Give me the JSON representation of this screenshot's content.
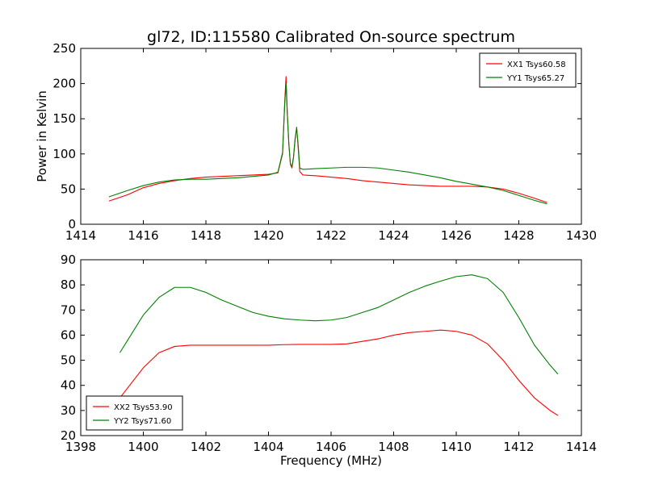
{
  "chart_data": [
    {
      "type": "line",
      "title": "gl72, ID:115580 Calibrated On-source spectrum",
      "xlabel": "",
      "ylabel": "Power in Kelvin",
      "xlim": [
        1414,
        1430
      ],
      "ylim": [
        0,
        250
      ],
      "xticks": [
        "1414",
        "1416",
        "1418",
        "1420",
        "1422",
        "1424",
        "1426",
        "1428",
        "1430"
      ],
      "yticks": [
        "0",
        "50",
        "100",
        "150",
        "200",
        "250"
      ],
      "legend_position": "top-right",
      "series": [
        {
          "name": "XX1 Tsys60.58",
          "color": "#ff0000",
          "x": [
            1414.9,
            1415.5,
            1416,
            1416.5,
            1417,
            1417.5,
            1418,
            1418.5,
            1419,
            1419.5,
            1420,
            1420.3,
            1420.45,
            1420.52,
            1420.56,
            1420.6,
            1420.65,
            1420.7,
            1420.75,
            1420.8,
            1420.85,
            1420.9,
            1420.95,
            1421.0,
            1421.1,
            1421.5,
            1422,
            1422.5,
            1423,
            1423.5,
            1424,
            1424.5,
            1425,
            1425.5,
            1426,
            1426.5,
            1427,
            1427.5,
            1428,
            1428.5,
            1428.9
          ],
          "values": [
            33,
            42,
            52,
            58,
            62,
            65,
            67,
            68,
            69,
            70,
            71,
            73,
            100,
            175,
            210,
            160,
            115,
            85,
            80,
            95,
            120,
            138,
            108,
            75,
            70,
            69,
            67,
            65,
            62,
            60,
            58,
            56,
            55,
            54,
            54,
            54,
            53,
            50,
            44,
            37,
            31
          ]
        },
        {
          "name": "YY1 Tsys65.27",
          "color": "#008000",
          "x": [
            1414.9,
            1415.5,
            1416,
            1416.5,
            1417,
            1417.5,
            1418,
            1418.5,
            1419,
            1419.5,
            1420,
            1420.3,
            1420.45,
            1420.52,
            1420.56,
            1420.6,
            1420.65,
            1420.7,
            1420.75,
            1420.8,
            1420.85,
            1420.9,
            1420.95,
            1421.0,
            1421.1,
            1421.5,
            1422,
            1422.5,
            1423,
            1423.5,
            1424,
            1424.5,
            1425,
            1425.5,
            1426,
            1426.5,
            1427,
            1427.5,
            1428,
            1428.5,
            1428.9
          ],
          "values": [
            39,
            48,
            55,
            60,
            63,
            64,
            64,
            65,
            66,
            68,
            70,
            74,
            102,
            172,
            200,
            158,
            114,
            86,
            82,
            96,
            122,
            137,
            112,
            80,
            78,
            79,
            80,
            81,
            81,
            80,
            77,
            74,
            70,
            66,
            61,
            57,
            53,
            48,
            41,
            34,
            29
          ]
        }
      ]
    },
    {
      "type": "line",
      "title": "",
      "xlabel": "Frequency (MHz)",
      "ylabel": "",
      "xlim": [
        1398,
        1414
      ],
      "ylim": [
        20,
        90
      ],
      "xticks": [
        "1398",
        "1400",
        "1402",
        "1404",
        "1406",
        "1408",
        "1410",
        "1412",
        "1414"
      ],
      "yticks": [
        "20",
        "30",
        "40",
        "50",
        "60",
        "70",
        "80",
        "90"
      ],
      "legend_position": "bottom-left",
      "series": [
        {
          "name": "XX2 Tsys53.90",
          "color": "#ff0000",
          "x": [
            1399.25,
            1399.5,
            1400,
            1400.5,
            1401,
            1401.5,
            1402,
            1402.5,
            1403,
            1403.5,
            1404,
            1404.5,
            1405,
            1405.5,
            1406,
            1406.5,
            1407,
            1407.5,
            1408,
            1408.5,
            1409,
            1409.5,
            1410,
            1410.5,
            1411,
            1411.5,
            1412,
            1412.5,
            1413,
            1413.25
          ],
          "values": [
            35,
            39,
            47,
            53,
            55.5,
            56,
            56,
            56,
            56,
            56,
            56,
            56.2,
            56.3,
            56.3,
            56.3,
            56.5,
            57.5,
            58.5,
            60,
            61,
            61.5,
            62,
            61.5,
            60,
            56.5,
            50,
            42,
            35,
            30,
            28
          ]
        },
        {
          "name": "YY2 Tsys71.60",
          "color": "#008000",
          "x": [
            1399.25,
            1399.5,
            1400,
            1400.5,
            1401,
            1401.5,
            1402,
            1402.5,
            1403,
            1403.5,
            1404,
            1404.5,
            1405,
            1405.5,
            1406,
            1406.5,
            1407,
            1407.5,
            1408,
            1408.5,
            1409,
            1409.5,
            1410,
            1410.5,
            1411,
            1411.5,
            1412,
            1412.5,
            1413,
            1413.25
          ],
          "values": [
            53,
            58,
            68,
            75,
            79,
            79,
            77,
            74,
            71.5,
            69,
            67.5,
            66.5,
            66,
            65.7,
            66,
            67,
            69,
            71,
            74,
            77,
            79.5,
            81.5,
            83.3,
            84,
            82.5,
            77,
            67,
            56,
            48,
            44.5
          ]
        }
      ]
    }
  ]
}
